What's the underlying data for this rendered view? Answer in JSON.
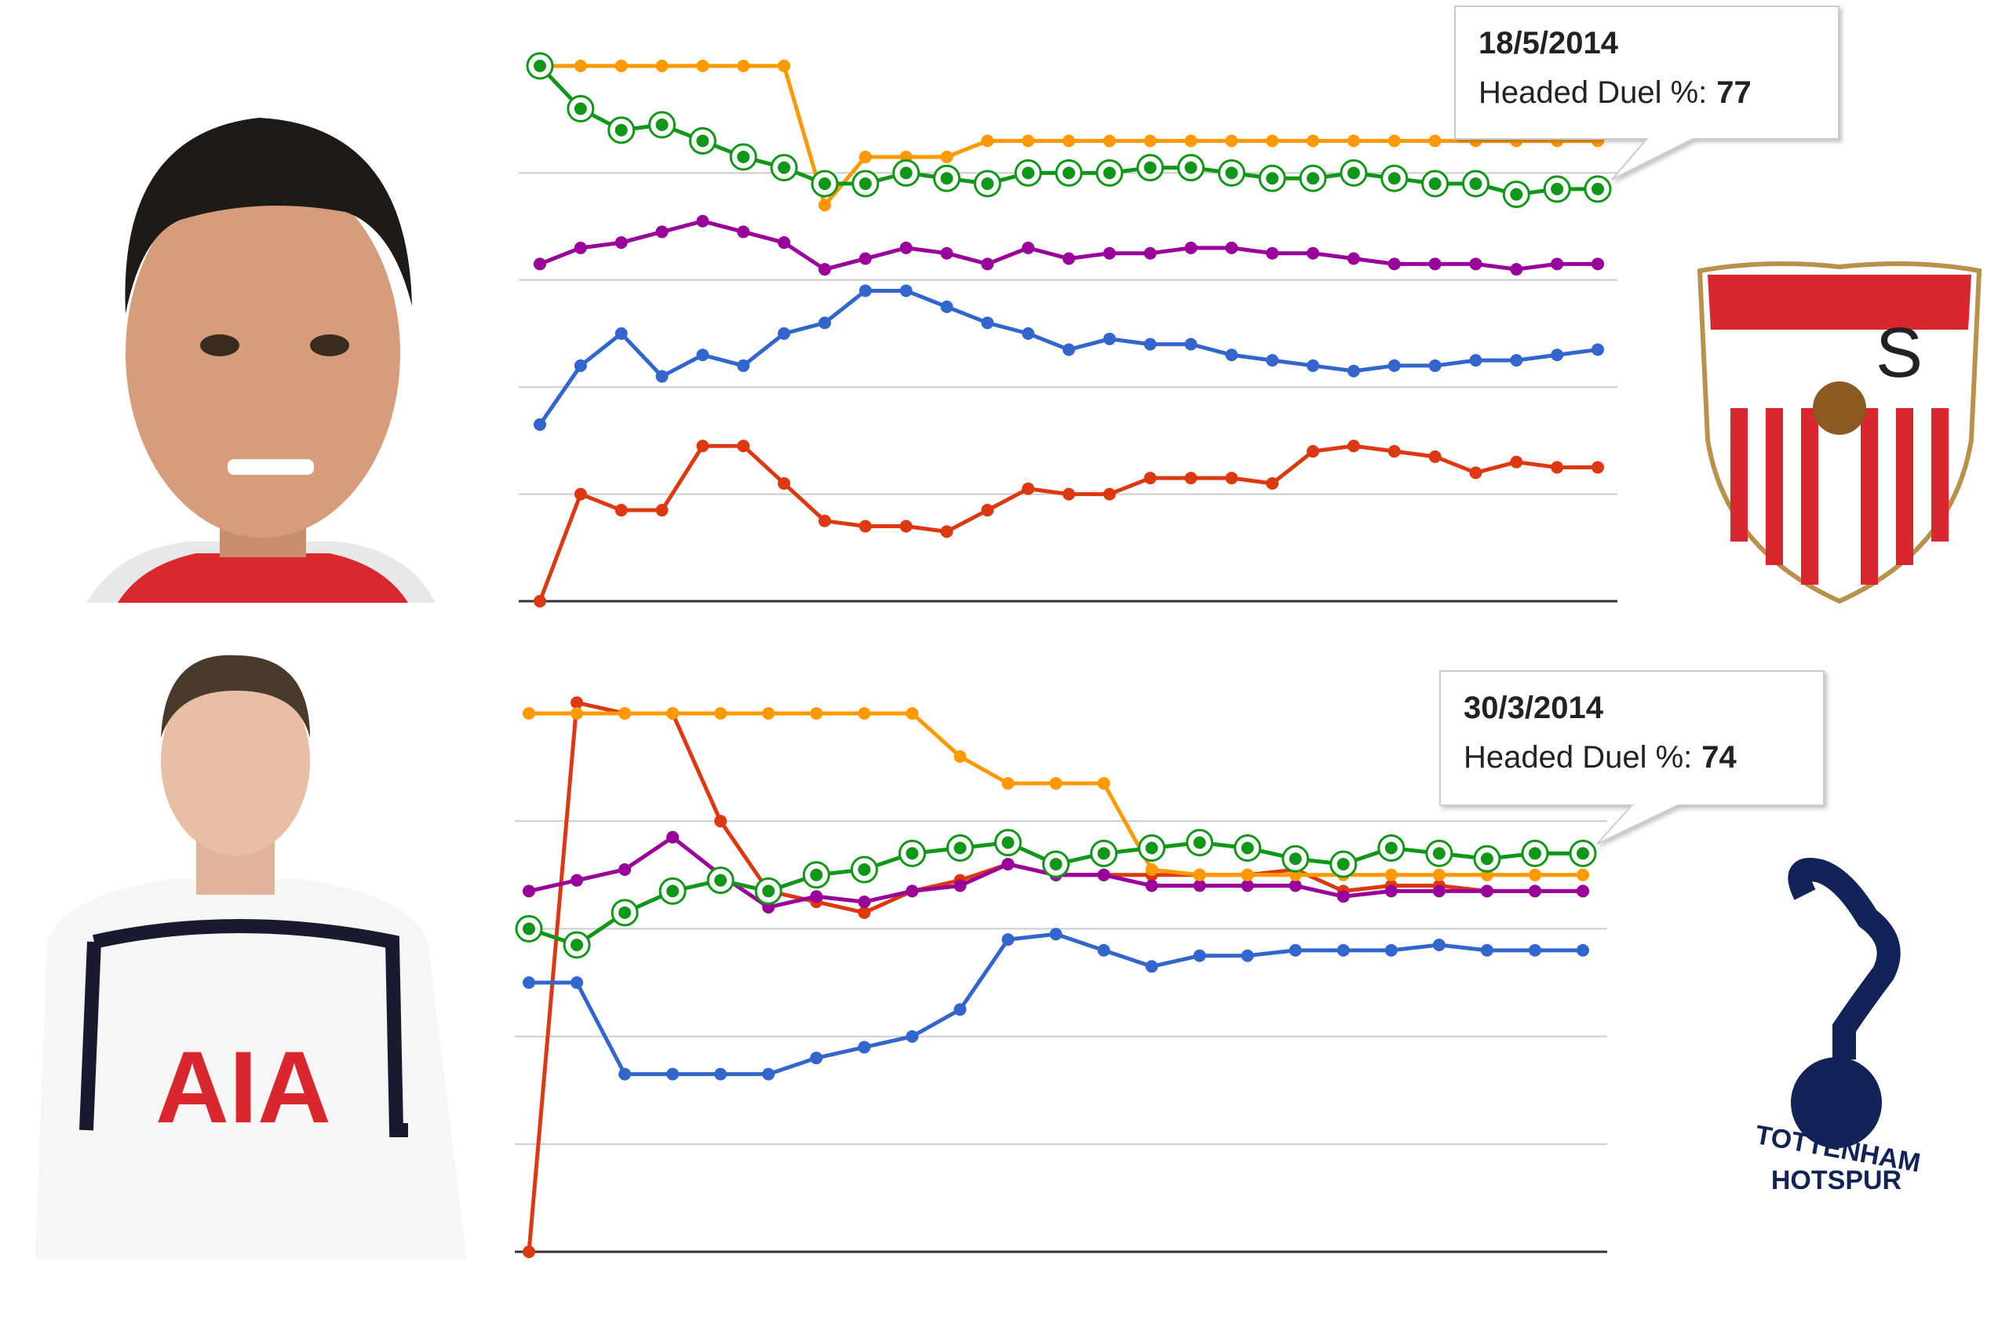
{
  "chart_data": [
    {
      "type": "line",
      "ylim": [
        0,
        100
      ],
      "yticks": [
        0,
        20,
        40,
        60,
        80
      ],
      "grid": true,
      "series": [
        {
          "color": "#dc3912",
          "values": [
            0,
            20,
            17,
            17,
            29,
            29,
            22,
            15,
            14,
            14,
            13,
            17,
            21,
            20,
            20,
            23,
            23,
            23,
            22,
            28,
            29,
            28,
            27,
            24,
            26,
            25,
            25
          ]
        },
        {
          "color": "#3366cc",
          "values": [
            33,
            44,
            50,
            42,
            46,
            44,
            50,
            52,
            58,
            58,
            55,
            52,
            50,
            47,
            49,
            48,
            48,
            46,
            45,
            44,
            43,
            44,
            44,
            45,
            45,
            46,
            47
          ]
        },
        {
          "color": "#990099",
          "values": [
            63,
            66,
            67,
            69,
            71,
            69,
            67,
            62,
            64,
            66,
            65,
            63,
            66,
            64,
            65,
            65,
            66,
            66,
            65,
            65,
            64,
            63,
            63,
            63,
            62,
            63,
            63
          ]
        },
        {
          "color": "#ff9900",
          "values": [
            100,
            100,
            100,
            100,
            100,
            100,
            100,
            74,
            83,
            83,
            83,
            86,
            86,
            86,
            86,
            86,
            86,
            86,
            86,
            86,
            86,
            86,
            86,
            86,
            86,
            86,
            86
          ]
        },
        {
          "color": "#109618",
          "highlight": true,
          "values": [
            100,
            92,
            88,
            89,
            86,
            83,
            81,
            78,
            78,
            80,
            79,
            78,
            80,
            80,
            80,
            81,
            81,
            80,
            79,
            79,
            80,
            79,
            78,
            78,
            76,
            77,
            77
          ]
        }
      ],
      "tooltip": {
        "date": "18/5/2014",
        "label": "Headed Duel %:",
        "value": 77
      }
    },
    {
      "type": "line",
      "ylim": [
        0,
        100
      ],
      "yticks": [
        0,
        20,
        40,
        60,
        80
      ],
      "grid": true,
      "series": [
        {
          "color": "#dc3912",
          "values": [
            0,
            102,
            100,
            100,
            80,
            67,
            65,
            63,
            67,
            69,
            72,
            70,
            70,
            70,
            70,
            70,
            71,
            67,
            68,
            68,
            67,
            67,
            67
          ]
        },
        {
          "color": "#3366cc",
          "values": [
            50,
            50,
            33,
            33,
            33,
            33,
            36,
            38,
            40,
            45,
            58,
            59,
            56,
            53,
            55,
            55,
            56,
            56,
            56,
            57,
            56,
            56,
            56
          ]
        },
        {
          "color": "#990099",
          "values": [
            67,
            69,
            71,
            77,
            70,
            64,
            66,
            65,
            67,
            68,
            72,
            70,
            70,
            68,
            68,
            68,
            68,
            66,
            67,
            67,
            67,
            67,
            67
          ]
        },
        {
          "color": "#ff9900",
          "values": [
            100,
            100,
            100,
            100,
            100,
            100,
            100,
            100,
            100,
            92,
            87,
            87,
            87,
            71,
            70,
            70,
            70,
            70,
            70,
            70,
            70,
            70,
            70
          ]
        },
        {
          "color": "#109618",
          "highlight": true,
          "values": [
            60,
            57,
            63,
            67,
            69,
            67,
            70,
            71,
            74,
            75,
            76,
            72,
            74,
            75,
            76,
            75,
            73,
            72,
            75,
            74,
            73,
            74,
            74
          ]
        }
      ],
      "tooltip": {
        "date": "30/3/2014",
        "label": "Headed Duel %:",
        "value": 74
      }
    }
  ],
  "images": {
    "shirt_sponsor": "AIA",
    "crest_text": [
      "TOTTENHAM",
      "HOTSPUR"
    ]
  }
}
